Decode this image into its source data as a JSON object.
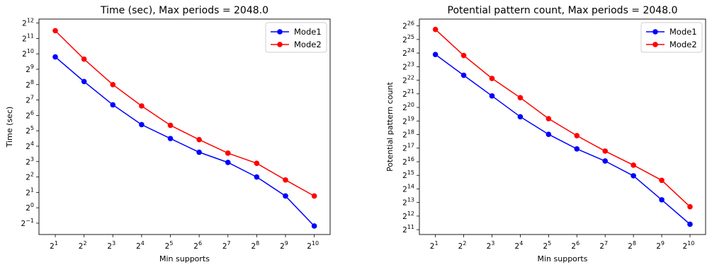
{
  "chart_data": [
    {
      "type": "line",
      "title": "Time (sec), Max periods = 2048.0",
      "xlabel": "Min supports",
      "ylabel": "Time (sec)",
      "xscale": "log2",
      "yscale": "log2",
      "x": [
        2,
        4,
        8,
        16,
        32,
        64,
        128,
        256,
        512,
        1024
      ],
      "xticks": [
        {
          "base": "2",
          "exp": "1",
          "value": 2
        },
        {
          "base": "2",
          "exp": "2",
          "value": 4
        },
        {
          "base": "2",
          "exp": "3",
          "value": 8
        },
        {
          "base": "2",
          "exp": "4",
          "value": 16
        },
        {
          "base": "2",
          "exp": "5",
          "value": 32
        },
        {
          "base": "2",
          "exp": "6",
          "value": 64
        },
        {
          "base": "2",
          "exp": "7",
          "value": 128
        },
        {
          "base": "2",
          "exp": "8",
          "value": 256
        },
        {
          "base": "2",
          "exp": "9",
          "value": 512
        },
        {
          "base": "2",
          "exp": "10",
          "value": 1024
        }
      ],
      "yticks": [
        {
          "base": "2",
          "exp": "−1",
          "value": 0.5
        },
        {
          "base": "2",
          "exp": "0",
          "value": 1
        },
        {
          "base": "2",
          "exp": "1",
          "value": 2
        },
        {
          "base": "2",
          "exp": "2",
          "value": 4
        },
        {
          "base": "2",
          "exp": "3",
          "value": 8
        },
        {
          "base": "2",
          "exp": "4",
          "value": 16
        },
        {
          "base": "2",
          "exp": "5",
          "value": 32
        },
        {
          "base": "2",
          "exp": "6",
          "value": 64
        },
        {
          "base": "2",
          "exp": "7",
          "value": 128
        },
        {
          "base": "2",
          "exp": "8",
          "value": 256
        },
        {
          "base": "2",
          "exp": "9",
          "value": 512
        },
        {
          "base": "2",
          "exp": "10",
          "value": 1024
        },
        {
          "base": "2",
          "exp": "11",
          "value": 2048
        },
        {
          "base": "2",
          "exp": "12",
          "value": 4096
        }
      ],
      "ylim": [
        0.3,
        4900
      ],
      "xlim": [
        1.35,
        1500
      ],
      "legend_position": "top-right",
      "grid": false,
      "series": [
        {
          "name": "Mode1",
          "color": "#0000ff",
          "values": [
            892,
            294,
            103,
            42.2,
            22.6,
            12.2,
            7.7,
            4.0,
            1.7,
            0.44
          ]
        },
        {
          "name": "Mode2",
          "color": "#ff0000",
          "values": [
            2900,
            806,
            256,
            98,
            41,
            21.5,
            11.7,
            7.4,
            3.5,
            1.7
          ]
        }
      ]
    },
    {
      "type": "line",
      "title": "Potential pattern count, Max periods = 2048.0",
      "xlabel": "Min supports",
      "ylabel": "Potential pattern count",
      "xscale": "log2",
      "yscale": "log2",
      "x": [
        2,
        4,
        8,
        16,
        32,
        64,
        128,
        256,
        512,
        1024
      ],
      "xticks": [
        {
          "base": "2",
          "exp": "1",
          "value": 2
        },
        {
          "base": "2",
          "exp": "2",
          "value": 4
        },
        {
          "base": "2",
          "exp": "3",
          "value": 8
        },
        {
          "base": "2",
          "exp": "4",
          "value": 16
        },
        {
          "base": "2",
          "exp": "5",
          "value": 32
        },
        {
          "base": "2",
          "exp": "6",
          "value": 64
        },
        {
          "base": "2",
          "exp": "7",
          "value": 128
        },
        {
          "base": "2",
          "exp": "8",
          "value": 256
        },
        {
          "base": "2",
          "exp": "9",
          "value": 512
        },
        {
          "base": "2",
          "exp": "10",
          "value": 1024
        }
      ],
      "yticks": [
        {
          "base": "2",
          "exp": "11",
          "value": 2048
        },
        {
          "base": "2",
          "exp": "12",
          "value": 4096
        },
        {
          "base": "2",
          "exp": "13",
          "value": 8192
        },
        {
          "base": "2",
          "exp": "14",
          "value": 16384
        },
        {
          "base": "2",
          "exp": "15",
          "value": 32768
        },
        {
          "base": "2",
          "exp": "16",
          "value": 65536
        },
        {
          "base": "2",
          "exp": "17",
          "value": 131072
        },
        {
          "base": "2",
          "exp": "18",
          "value": 262144
        },
        {
          "base": "2",
          "exp": "19",
          "value": 524288
        },
        {
          "base": "2",
          "exp": "20",
          "value": 1048576
        },
        {
          "base": "2",
          "exp": "21",
          "value": 2097152
        },
        {
          "base": "2",
          "exp": "22",
          "value": 4194304
        },
        {
          "base": "2",
          "exp": "23",
          "value": 8388608
        },
        {
          "base": "2",
          "exp": "24",
          "value": 16777216
        },
        {
          "base": "2",
          "exp": "25",
          "value": 33554432
        },
        {
          "base": "2",
          "exp": "26",
          "value": 67108864
        }
      ],
      "ylim": [
        1600,
        95000000
      ],
      "xlim": [
        1.35,
        1500
      ],
      "legend_position": "top-right",
      "grid": false,
      "series": [
        {
          "name": "Mode1",
          "color": "#0000ff",
          "values": [
            15600000,
            5400000,
            1880000,
            650000,
            265000,
            126000,
            68000,
            32000,
            9400,
            2700
          ]
        },
        {
          "name": "Mode2",
          "color": "#ff0000",
          "values": [
            56000000,
            14800000,
            4600000,
            1720000,
            590000,
            248000,
            113000,
            55000,
            25400,
            6600
          ]
        }
      ]
    }
  ]
}
